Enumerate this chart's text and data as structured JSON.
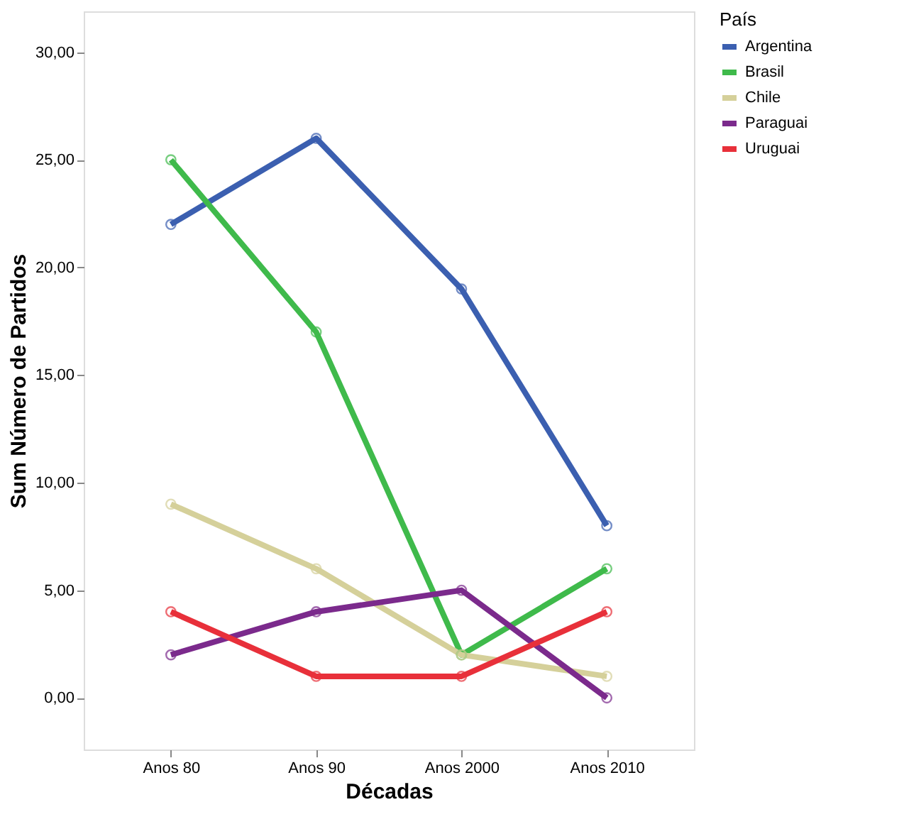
{
  "chart_data": {
    "type": "line",
    "xlabel": "Décadas",
    "ylabel": "Sum Número de Partidos",
    "legend_title": "País",
    "categories": [
      "Anos 80",
      "Anos 90",
      "Anos 2000",
      "Anos 2010"
    ],
    "series": [
      {
        "name": "Argentina",
        "color": "#3b5fb0",
        "values": [
          22,
          26,
          19,
          8
        ]
      },
      {
        "name": "Brasil",
        "color": "#3fba4b",
        "values": [
          25,
          17,
          2,
          6
        ]
      },
      {
        "name": "Chile",
        "color": "#d5d09a",
        "values": [
          9,
          6,
          2,
          1
        ]
      },
      {
        "name": "Paraguai",
        "color": "#7b2a8c",
        "values": [
          2,
          4,
          5,
          0
        ]
      },
      {
        "name": "Uruguai",
        "color": "#e8303a",
        "values": [
          4,
          1,
          1,
          4
        ]
      }
    ],
    "ylim": [
      -2.4,
      31.9
    ],
    "yticks": [
      {
        "value": 0,
        "label": "0,00"
      },
      {
        "value": 5,
        "label": "5,00"
      },
      {
        "value": 10,
        "label": "10,00"
      },
      {
        "value": 15,
        "label": "15,00"
      },
      {
        "value": 20,
        "label": "20,00"
      },
      {
        "value": 25,
        "label": "25,00"
      },
      {
        "value": 30,
        "label": "30,00"
      }
    ],
    "marker": "circle",
    "line_style": "solid",
    "grid": false,
    "legend": "top right"
  }
}
